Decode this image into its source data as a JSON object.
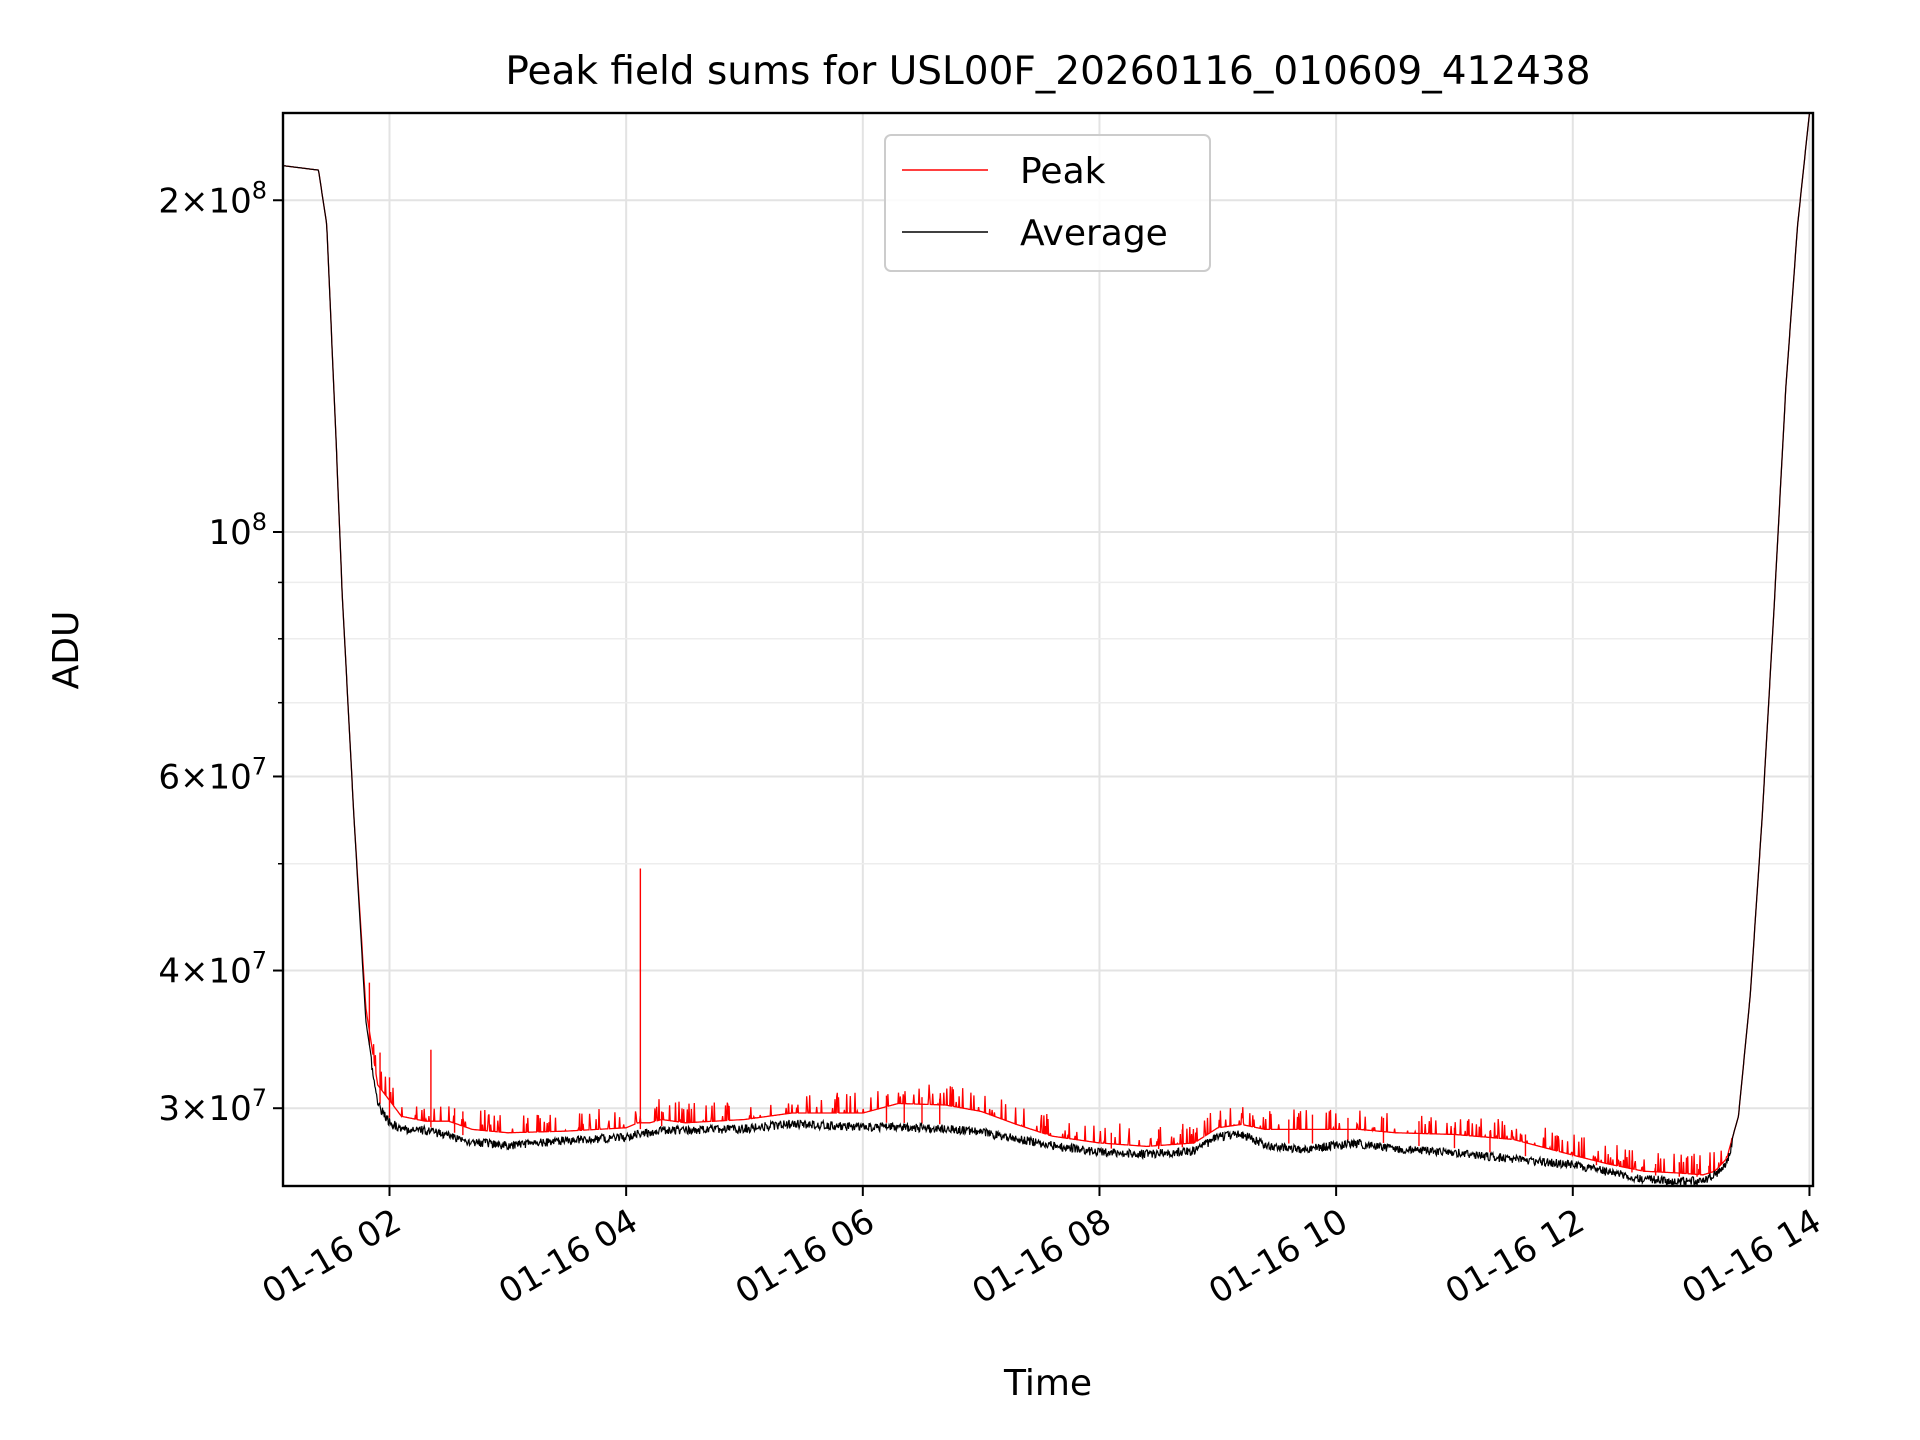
{
  "chart_data": {
    "type": "line",
    "title": "Peak field sums for USL00F_20260116_010609_412438",
    "xlabel": "Time",
    "ylabel": "ADU",
    "yscale": "log",
    "grid": true,
    "legend_position": "top-center",
    "xlim_hours": [
      1.1,
      14.03
    ],
    "ylim": [
      25500000,
      240000000
    ],
    "x_ticks": [
      {
        "hour": 2,
        "label": "01-16 02"
      },
      {
        "hour": 4,
        "label": "01-16 04"
      },
      {
        "hour": 6,
        "label": "01-16 06"
      },
      {
        "hour": 8,
        "label": "01-16 08"
      },
      {
        "hour": 10,
        "label": "01-16 10"
      },
      {
        "hour": 12,
        "label": "01-16 12"
      },
      {
        "hour": 14,
        "label": "01-16 14"
      }
    ],
    "y_major_ticks": [
      {
        "value": 30000000,
        "mantissa": "3",
        "exp": "7"
      },
      {
        "value": 40000000,
        "mantissa": "4",
        "exp": "7"
      },
      {
        "value": 60000000,
        "mantissa": "6",
        "exp": "7"
      },
      {
        "value": 100000000,
        "mantissa": "",
        "exp": "8"
      },
      {
        "value": 200000000,
        "mantissa": "2",
        "exp": "8"
      }
    ],
    "y_minor_ticks": [
      50000000,
      70000000,
      80000000,
      90000000
    ],
    "series": [
      {
        "name": "Peak",
        "color": "#ff0000",
        "x": [
          1.1,
          1.4,
          1.47,
          1.55,
          1.6,
          1.7,
          1.8,
          1.9,
          2.0,
          2.1,
          2.3,
          2.5,
          2.7,
          3.0,
          3.5,
          4.0,
          4.1,
          4.2,
          4.3,
          4.5,
          5.0,
          5.4,
          6.0,
          6.3,
          6.7,
          7.0,
          7.3,
          7.6,
          8.0,
          8.4,
          8.8,
          9.0,
          9.2,
          9.4,
          9.7,
          10.0,
          10.2,
          10.5,
          11.0,
          11.5,
          12.0,
          12.3,
          12.6,
          12.9,
          13.1,
          13.2,
          13.3,
          13.4,
          13.5,
          13.6,
          13.7,
          13.8,
          13.9,
          14.0
        ],
        "y": [
          215000000,
          213000000,
          190000000,
          120000000,
          88000000,
          55000000,
          37000000,
          31500000,
          30500000,
          29500000,
          29200000,
          29200000,
          28700000,
          28500000,
          28600000,
          28800000,
          29100000,
          29100000,
          29300000,
          29100000,
          29300000,
          29700000,
          29700000,
          30300000,
          30200000,
          29800000,
          29000000,
          28300000,
          27900000,
          27700000,
          27900000,
          28800000,
          29000000,
          28700000,
          28700000,
          28700000,
          28700000,
          28500000,
          28400000,
          28100000,
          27200000,
          26700000,
          26300000,
          26200000,
          26100000,
          26300000,
          27000000,
          29500000,
          38000000,
          55000000,
          85000000,
          135000000,
          190000000,
          240000000
        ]
      },
      {
        "name": "Average",
        "color": "#000000",
        "x": [
          1.1,
          1.4,
          1.47,
          1.55,
          1.6,
          1.7,
          1.8,
          1.9,
          2.0,
          2.1,
          2.3,
          2.5,
          2.7,
          3.0,
          3.5,
          4.0,
          4.1,
          4.2,
          4.3,
          4.5,
          5.0,
          5.4,
          6.0,
          6.3,
          6.7,
          7.0,
          7.3,
          7.6,
          8.0,
          8.4,
          8.8,
          9.0,
          9.2,
          9.4,
          9.7,
          10.0,
          10.2,
          10.5,
          11.0,
          11.5,
          12.0,
          12.3,
          12.6,
          12.9,
          13.1,
          13.2,
          13.3,
          13.4,
          13.5,
          13.6,
          13.7,
          13.8,
          13.9,
          14.0
        ],
        "y": [
          215000000,
          213000000,
          190000000,
          120000000,
          88000000,
          55000000,
          36000000,
          30500000,
          29400000,
          29000000,
          28900000,
          28600000,
          28200000,
          28000000,
          28300000,
          28500000,
          28700000,
          28800000,
          28900000,
          28900000,
          29000000,
          29300000,
          29100000,
          29100000,
          29000000,
          28800000,
          28400000,
          28000000,
          27600000,
          27500000,
          27700000,
          28500000,
          28700000,
          28000000,
          27800000,
          28000000,
          28100000,
          27800000,
          27600000,
          27200000,
          26900000,
          26500000,
          26100000,
          26000000,
          26000000,
          26300000,
          27000000,
          29500000,
          38000000,
          55000000,
          85000000,
          135000000,
          190000000,
          240000000
        ]
      }
    ],
    "peak_spikes": [
      {
        "x": 1.83,
        "y": 39000000
      },
      {
        "x": 1.92,
        "y": 33700000
      },
      {
        "x": 2.0,
        "y": 32000000
      },
      {
        "x": 2.35,
        "y": 33900000
      },
      {
        "x": 2.55,
        "y": 30000000
      },
      {
        "x": 2.62,
        "y": 29800000
      },
      {
        "x": 4.12,
        "y": 49500000
      },
      {
        "x": 4.3,
        "y": 29800000
      },
      {
        "x": 6.2,
        "y": 30800000
      },
      {
        "x": 6.35,
        "y": 30800000
      },
      {
        "x": 6.5,
        "y": 30700000
      },
      {
        "x": 6.65,
        "y": 30600000
      },
      {
        "x": 8.1,
        "y": 28500000
      },
      {
        "x": 8.5,
        "y": 28700000
      },
      {
        "x": 8.7,
        "y": 28700000
      },
      {
        "x": 9.6,
        "y": 29300000
      },
      {
        "x": 9.8,
        "y": 29600000
      },
      {
        "x": 10.1,
        "y": 29400000
      },
      {
        "x": 10.4,
        "y": 29400000
      },
      {
        "x": 10.7,
        "y": 29200000
      },
      {
        "x": 11.0,
        "y": 28800000
      },
      {
        "x": 11.3,
        "y": 28600000
      },
      {
        "x": 11.6,
        "y": 28400000
      },
      {
        "x": 12.2,
        "y": 27000000
      },
      {
        "x": 12.5,
        "y": 26900000
      },
      {
        "x": 12.7,
        "y": 26700000
      },
      {
        "x": 12.9,
        "y": 26800000
      },
      {
        "x": 13.05,
        "y": 26700000
      },
      {
        "x": 13.15,
        "y": 26600000
      }
    ]
  }
}
